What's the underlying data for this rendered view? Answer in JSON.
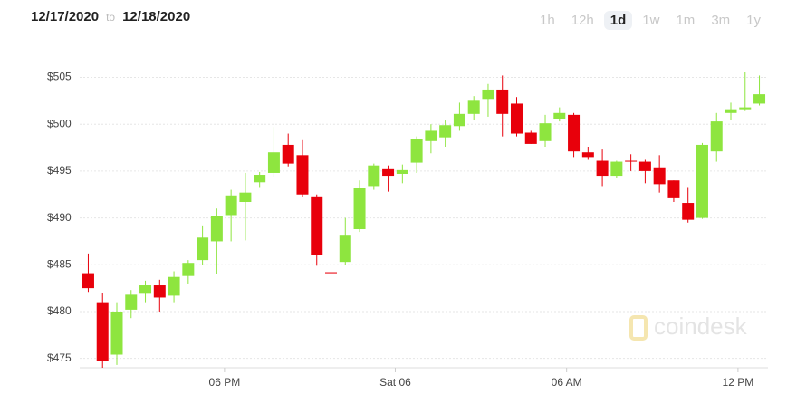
{
  "header": {
    "range_start": "12/17/2020",
    "range_sep": "to",
    "range_end": "12/18/2020",
    "ranges": [
      "1h",
      "12h",
      "1d",
      "1w",
      "1m",
      "3m",
      "1y"
    ],
    "active_range": "1d"
  },
  "chart_data": {
    "type": "candlestick",
    "watermark": "coindesk",
    "up_color": "#8ee53f",
    "down_color": "#e8000b",
    "grid": true,
    "open": [
      484.1,
      481,
      475.4,
      480.2,
      481.9,
      482.8,
      481.7,
      483.8,
      485.5,
      487.5,
      490.3,
      491.7,
      493.8,
      494.8,
      497.8,
      496.7,
      492.3,
      484.2,
      485.3,
      488.8,
      493.4,
      495.2,
      494.7,
      495.9,
      498.2,
      498.6,
      499.8,
      501.1,
      502.7,
      503.7,
      502.2,
      499.1,
      498.2,
      500.6,
      501,
      497,
      496.1,
      494.5,
      496.1,
      496,
      495.4,
      494,
      491.6,
      490,
      497.1,
      501.2,
      501.6,
      502.2
    ],
    "high": [
      486.2,
      482,
      481,
      482.3,
      483.3,
      483.4,
      484.3,
      485.5,
      489.2,
      491,
      493,
      494.8,
      494.9,
      499.7,
      499,
      498.3,
      492.5,
      488.2,
      490,
      494,
      495.8,
      495.6,
      495.7,
      498.7,
      500,
      500.4,
      502.3,
      503,
      504.3,
      505.2,
      502.9,
      499.3,
      501,
      501.8,
      501.2,
      497.6,
      497.3,
      496.1,
      496.8,
      496.2,
      496.7,
      494,
      493.3,
      498,
      501.2,
      502.3,
      505.6,
      505.2
    ],
    "low": [
      482.1,
      474,
      474.3,
      479.3,
      481,
      480,
      481,
      483,
      485,
      484,
      487.5,
      487.6,
      493.3,
      494.4,
      495.5,
      492.2,
      484.9,
      481.4,
      485,
      488.5,
      493,
      492.8,
      493.7,
      494.8,
      496.9,
      497.6,
      499.3,
      500.5,
      500.8,
      498.7,
      498.7,
      497.9,
      497.6,
      500.3,
      496.5,
      496.2,
      493.4,
      494.3,
      495,
      493.7,
      492.7,
      491.7,
      489.5,
      489.9,
      496,
      500.5,
      501.5,
      502
    ],
    "close": [
      482.5,
      474.7,
      480,
      481.8,
      482.8,
      481.5,
      483.7,
      485.2,
      487.9,
      490.2,
      492.4,
      492.7,
      494.6,
      497,
      495.8,
      492.5,
      486,
      484.1,
      488.2,
      493.2,
      495.6,
      494.5,
      495.1,
      498.4,
      499.3,
      499.9,
      501.1,
      502.6,
      503.7,
      501.1,
      499,
      497.9,
      500.1,
      501.2,
      497.1,
      496.5,
      494.5,
      496,
      496,
      495,
      493.6,
      492.1,
      489.8,
      497.8,
      500.3,
      501.6,
      501.8,
      503.2
    ],
    "ylim": [
      474,
      506.5
    ],
    "yticks": [
      {
        "value": 475,
        "label": "$475"
      },
      {
        "value": 480,
        "label": "$480"
      },
      {
        "value": 485,
        "label": "$485"
      },
      {
        "value": 490,
        "label": "$490"
      },
      {
        "value": 495,
        "label": "$495"
      },
      {
        "value": 500,
        "label": "$500"
      },
      {
        "value": 505,
        "label": "$505"
      }
    ],
    "xlim": [
      -0.6,
      47.6
    ],
    "xticks": [
      {
        "value": 9.54,
        "label": "06 PM"
      },
      {
        "value": 21.5,
        "label": "Sat 06"
      },
      {
        "value": 33.5,
        "label": "06 AM"
      },
      {
        "value": 45.5,
        "label": "12 PM"
      }
    ]
  }
}
